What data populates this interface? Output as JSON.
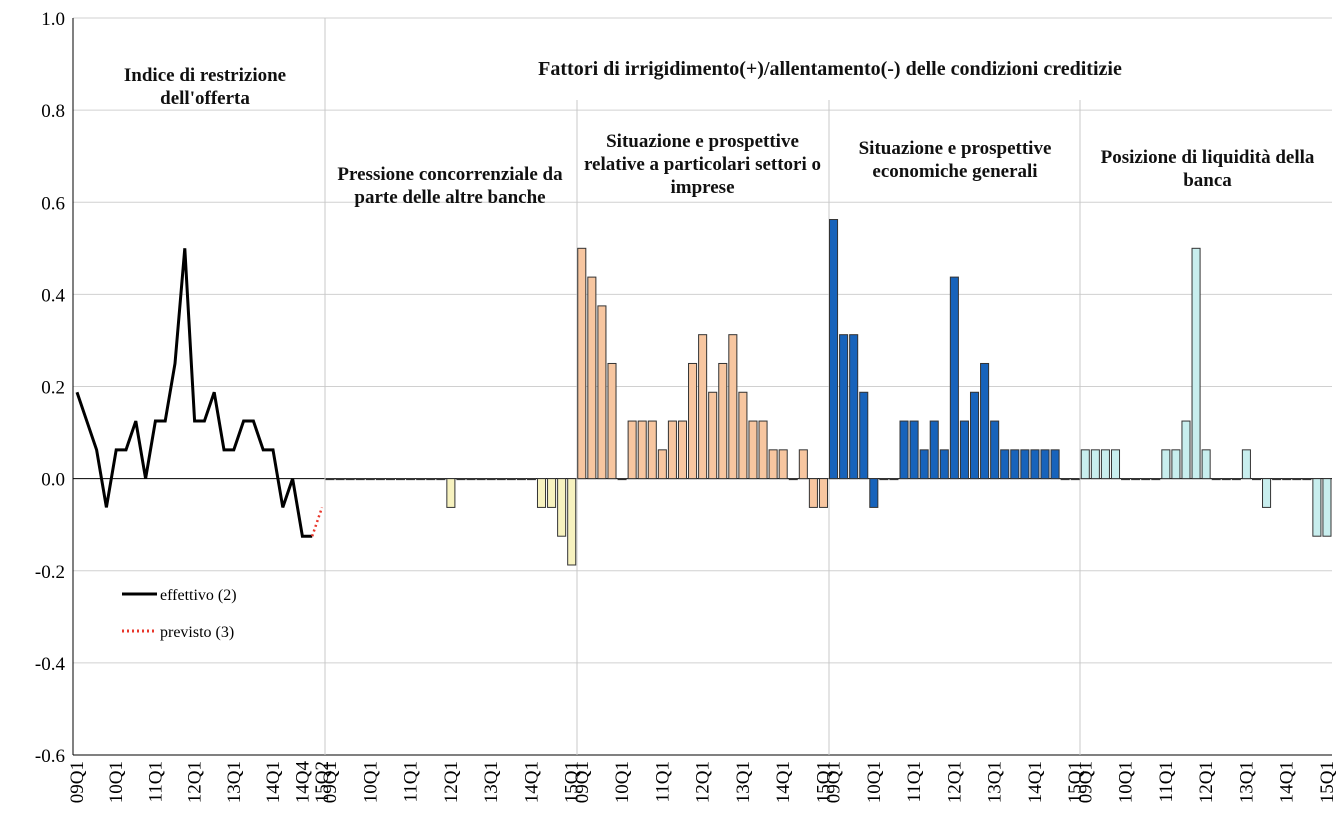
{
  "group_title": "Fattori di irrigidimento(+)/allentamento(-) delle condizioni creditizie",
  "chart_data": [
    {
      "type": "line",
      "title": "Indice di restrizione dell'offerta",
      "categories": [
        "09Q1",
        null,
        null,
        null,
        "10Q1",
        null,
        null,
        null,
        "11Q1",
        null,
        null,
        null,
        "12Q1",
        null,
        null,
        null,
        "13Q1",
        null,
        null,
        null,
        "14Q1",
        null,
        null,
        "14Q4",
        null,
        "15Q2"
      ],
      "series": [
        {
          "name": "effettivo (2)",
          "color": "#000000",
          "style": "solid",
          "values": [
            0.1875,
            0.125,
            0.0625,
            -0.0625,
            0.0625,
            0.0625,
            0.125,
            0,
            0.125,
            0.125,
            0.25,
            0.5,
            0.125,
            0.125,
            0.1875,
            0.0625,
            0.0625,
            0.125,
            0.125,
            0.0625,
            0.0625,
            -0.0625,
            0,
            -0.125,
            -0.125,
            null
          ]
        },
        {
          "name": "previsto (3)",
          "color": "#e8352a",
          "style": "dotted",
          "values": [
            null,
            null,
            null,
            null,
            null,
            null,
            null,
            null,
            null,
            null,
            null,
            null,
            null,
            null,
            null,
            null,
            null,
            null,
            null,
            null,
            null,
            null,
            null,
            null,
            -0.125,
            -0.0625
          ]
        }
      ],
      "ylim": [
        -0.6,
        1.0
      ],
      "yticks": [
        -0.6,
        -0.4,
        -0.2,
        {
          "value": 0,
          "label": "0.0"
        },
        0.2,
        0.4,
        0.6,
        0.8,
        {
          "value": 1.0,
          "label": "1.0"
        }
      ],
      "grid": true
    },
    {
      "type": "bar",
      "title": "Pressione concorrenziale da parte delle altre banche",
      "color": "#f7f2bf",
      "categories": [
        "09Q1",
        null,
        null,
        null,
        "10Q1",
        null,
        null,
        null,
        "11Q1",
        null,
        null,
        null,
        "12Q1",
        null,
        null,
        null,
        "13Q1",
        null,
        null,
        null,
        "14Q1",
        null,
        null,
        null,
        "15Q1"
      ],
      "values": [
        0,
        0,
        0,
        0,
        0,
        0,
        0,
        0,
        0,
        0,
        0,
        0,
        -0.0625,
        0,
        0,
        0,
        0,
        0,
        0,
        0,
        0,
        -0.0625,
        -0.0625,
        -0.125,
        -0.1875
      ]
    },
    {
      "type": "bar",
      "title": "Situazione e prospettive relative a particolari settori o imprese",
      "color": "#f7c6a0",
      "categories": [
        "09Q1",
        null,
        null,
        null,
        "10Q1",
        null,
        null,
        null,
        "11Q1",
        null,
        null,
        null,
        "12Q1",
        null,
        null,
        null,
        "13Q1",
        null,
        null,
        null,
        "14Q1",
        null,
        null,
        null,
        "15Q1"
      ],
      "values": [
        0.5,
        0.4375,
        0.375,
        0.25,
        0,
        0.125,
        0.125,
        0.125,
        0.0625,
        0.125,
        0.125,
        0.25,
        0.3125,
        0.1875,
        0.25,
        0.3125,
        0.1875,
        0.125,
        0.125,
        0.0625,
        0.0625,
        0,
        0.0625,
        -0.0625,
        -0.0625
      ]
    },
    {
      "type": "bar",
      "title": "Situazione e prospettive economiche generali",
      "color": "#1763bb",
      "categories": [
        "09Q1",
        null,
        null,
        null,
        "10Q1",
        null,
        null,
        null,
        "11Q1",
        null,
        null,
        null,
        "12Q1",
        null,
        null,
        null,
        "13Q1",
        null,
        null,
        null,
        "14Q1",
        null,
        null,
        null,
        "15Q1"
      ],
      "values": [
        0.5625,
        0.3125,
        0.3125,
        0.1875,
        -0.0625,
        0,
        0,
        0.125,
        0.125,
        0.0625,
        0.125,
        0.0625,
        0.4375,
        0.125,
        0.1875,
        0.25,
        0.125,
        0.0625,
        0.0625,
        0.0625,
        0.0625,
        0.0625,
        0.0625,
        0,
        0
      ]
    },
    {
      "type": "bar",
      "title": "Posizione di liquidità della banca",
      "color": "#c8eeee",
      "categories": [
        "09Q1",
        null,
        null,
        null,
        "10Q1",
        null,
        null,
        null,
        "11Q1",
        null,
        null,
        null,
        "12Q1",
        null,
        null,
        null,
        "13Q1",
        null,
        null,
        null,
        "14Q1",
        null,
        null,
        null,
        "15Q1"
      ],
      "values": [
        0.0625,
        0.0625,
        0.0625,
        0.0625,
        0,
        0,
        0,
        0,
        0.0625,
        0.0625,
        0.125,
        0.5,
        0.0625,
        0,
        0,
        0,
        0.0625,
        0,
        -0.0625,
        0,
        0,
        0,
        0,
        -0.125,
        -0.125
      ]
    }
  ]
}
